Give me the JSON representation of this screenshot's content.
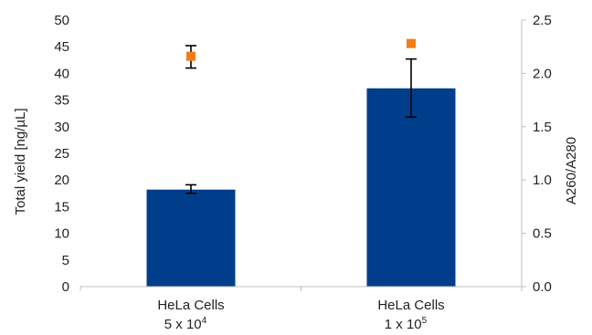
{
  "chart_data": {
    "type": "bar",
    "categories": [
      {
        "line1": "HeLa Cells",
        "line2_base": "5 x 10",
        "line2_exp": "4"
      },
      {
        "line1": "HeLa Cells",
        "line2_base": "1 x 10",
        "line2_exp": "5"
      }
    ],
    "series": [
      {
        "kind": "bar",
        "axis": "left",
        "values": [
          18.2,
          37.2
        ],
        "error_low": [
          17.5,
          31.8
        ],
        "error_high": [
          19.1,
          42.7
        ],
        "color": "#003e8c"
      },
      {
        "kind": "scatter",
        "axis": "right",
        "values": [
          2.16,
          2.28
        ],
        "error_low": [
          2.05,
          null
        ],
        "error_high": [
          2.26,
          null
        ],
        "marker": "square",
        "color": "#f07d1a"
      }
    ],
    "y_left": {
      "label": "Total yield [ng/µL]",
      "ylim": [
        0,
        50
      ],
      "ticks": [
        "0",
        "5",
        "10",
        "15",
        "20",
        "25",
        "30",
        "35",
        "40",
        "45",
        "50"
      ]
    },
    "y_right": {
      "label": "A260/A280",
      "ylim": [
        0,
        2.5
      ],
      "ticks": [
        "0.0",
        "0.5",
        "1.0",
        "1.5",
        "2.0",
        "2.5"
      ]
    },
    "grid": false,
    "legend": "none",
    "axis_color": "#bfbfbf",
    "error_bar_color": "#000000"
  }
}
